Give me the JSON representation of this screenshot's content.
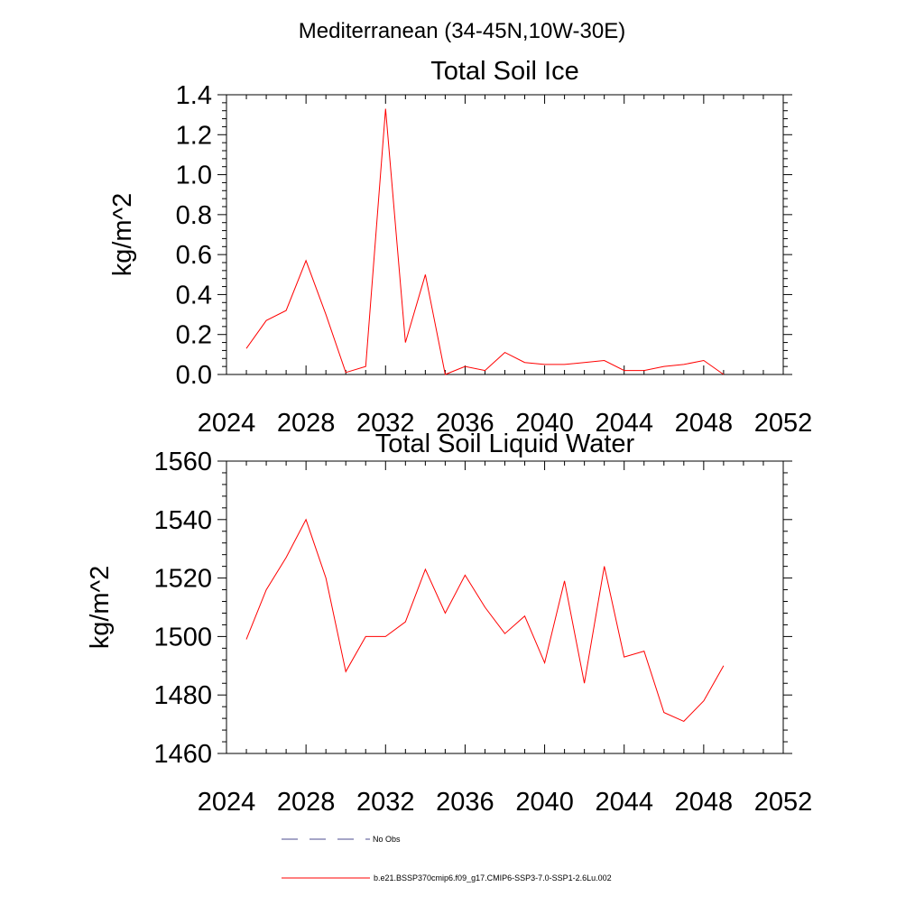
{
  "figure_title": "Mediterranean (34-45N,10W-30E)",
  "chart_data": [
    {
      "type": "line",
      "title": "Total Soil Ice",
      "xlabel": "",
      "ylabel": "kg/m^2",
      "xlim": [
        2024,
        2052
      ],
      "ylim": [
        0.0,
        1.4
      ],
      "x_ticks": [
        2024,
        2028,
        2032,
        2036,
        2040,
        2044,
        2048,
        2052
      ],
      "y_ticks": [
        "0.0",
        "0.2",
        "0.4",
        "0.6",
        "0.8",
        "1.0",
        "1.2",
        "1.4"
      ],
      "grid": false,
      "series": [
        {
          "color": "#ff0000",
          "x": [
            2025,
            2026,
            2027,
            2028,
            2029,
            2030,
            2031,
            2032,
            2033,
            2034,
            2035,
            2036,
            2037,
            2038,
            2039,
            2040,
            2041,
            2042,
            2043,
            2044,
            2045,
            2046,
            2047,
            2048,
            2049
          ],
          "values": [
            0.13,
            0.27,
            0.32,
            0.57,
            0.3,
            0.01,
            0.04,
            1.33,
            0.16,
            0.5,
            0.0,
            0.04,
            0.02,
            0.11,
            0.06,
            0.05,
            0.05,
            0.06,
            0.07,
            0.02,
            0.02,
            0.04,
            0.05,
            0.07,
            0.0
          ]
        }
      ]
    },
    {
      "type": "line",
      "title": "Total Soil Liquid Water",
      "xlabel": "",
      "ylabel": "kg/m^2",
      "xlim": [
        2024,
        2052
      ],
      "ylim": [
        1460,
        1560
      ],
      "x_ticks": [
        2024,
        2028,
        2032,
        2036,
        2040,
        2044,
        2048,
        2052
      ],
      "y_ticks": [
        "1460",
        "1480",
        "1500",
        "1520",
        "1540",
        "1560"
      ],
      "grid": false,
      "series": [
        {
          "color": "#ff0000",
          "x": [
            2025,
            2026,
            2027,
            2028,
            2029,
            2030,
            2031,
            2032,
            2033,
            2034,
            2035,
            2036,
            2037,
            2038,
            2039,
            2040,
            2041,
            2042,
            2043,
            2044,
            2045,
            2046,
            2047,
            2048,
            2049
          ],
          "values": [
            1499,
            1516,
            1527,
            1540,
            1520,
            1488,
            1500,
            1500,
            1505,
            1523,
            1508,
            1521,
            1510,
            1501,
            1507,
            1491,
            1519,
            1484,
            1524,
            1493,
            1495,
            1474,
            1471,
            1478,
            1490
          ]
        }
      ]
    }
  ],
  "legend": [
    {
      "label": "No Obs",
      "color": "#4b4b8f",
      "dash": "dashed"
    },
    {
      "label": "b.e21.BSSP370cmip6.f09_g17.CMIP6-SSP3-7.0-SSP1-2.6Lu.002",
      "color": "#ff0000",
      "dash": "solid"
    }
  ]
}
